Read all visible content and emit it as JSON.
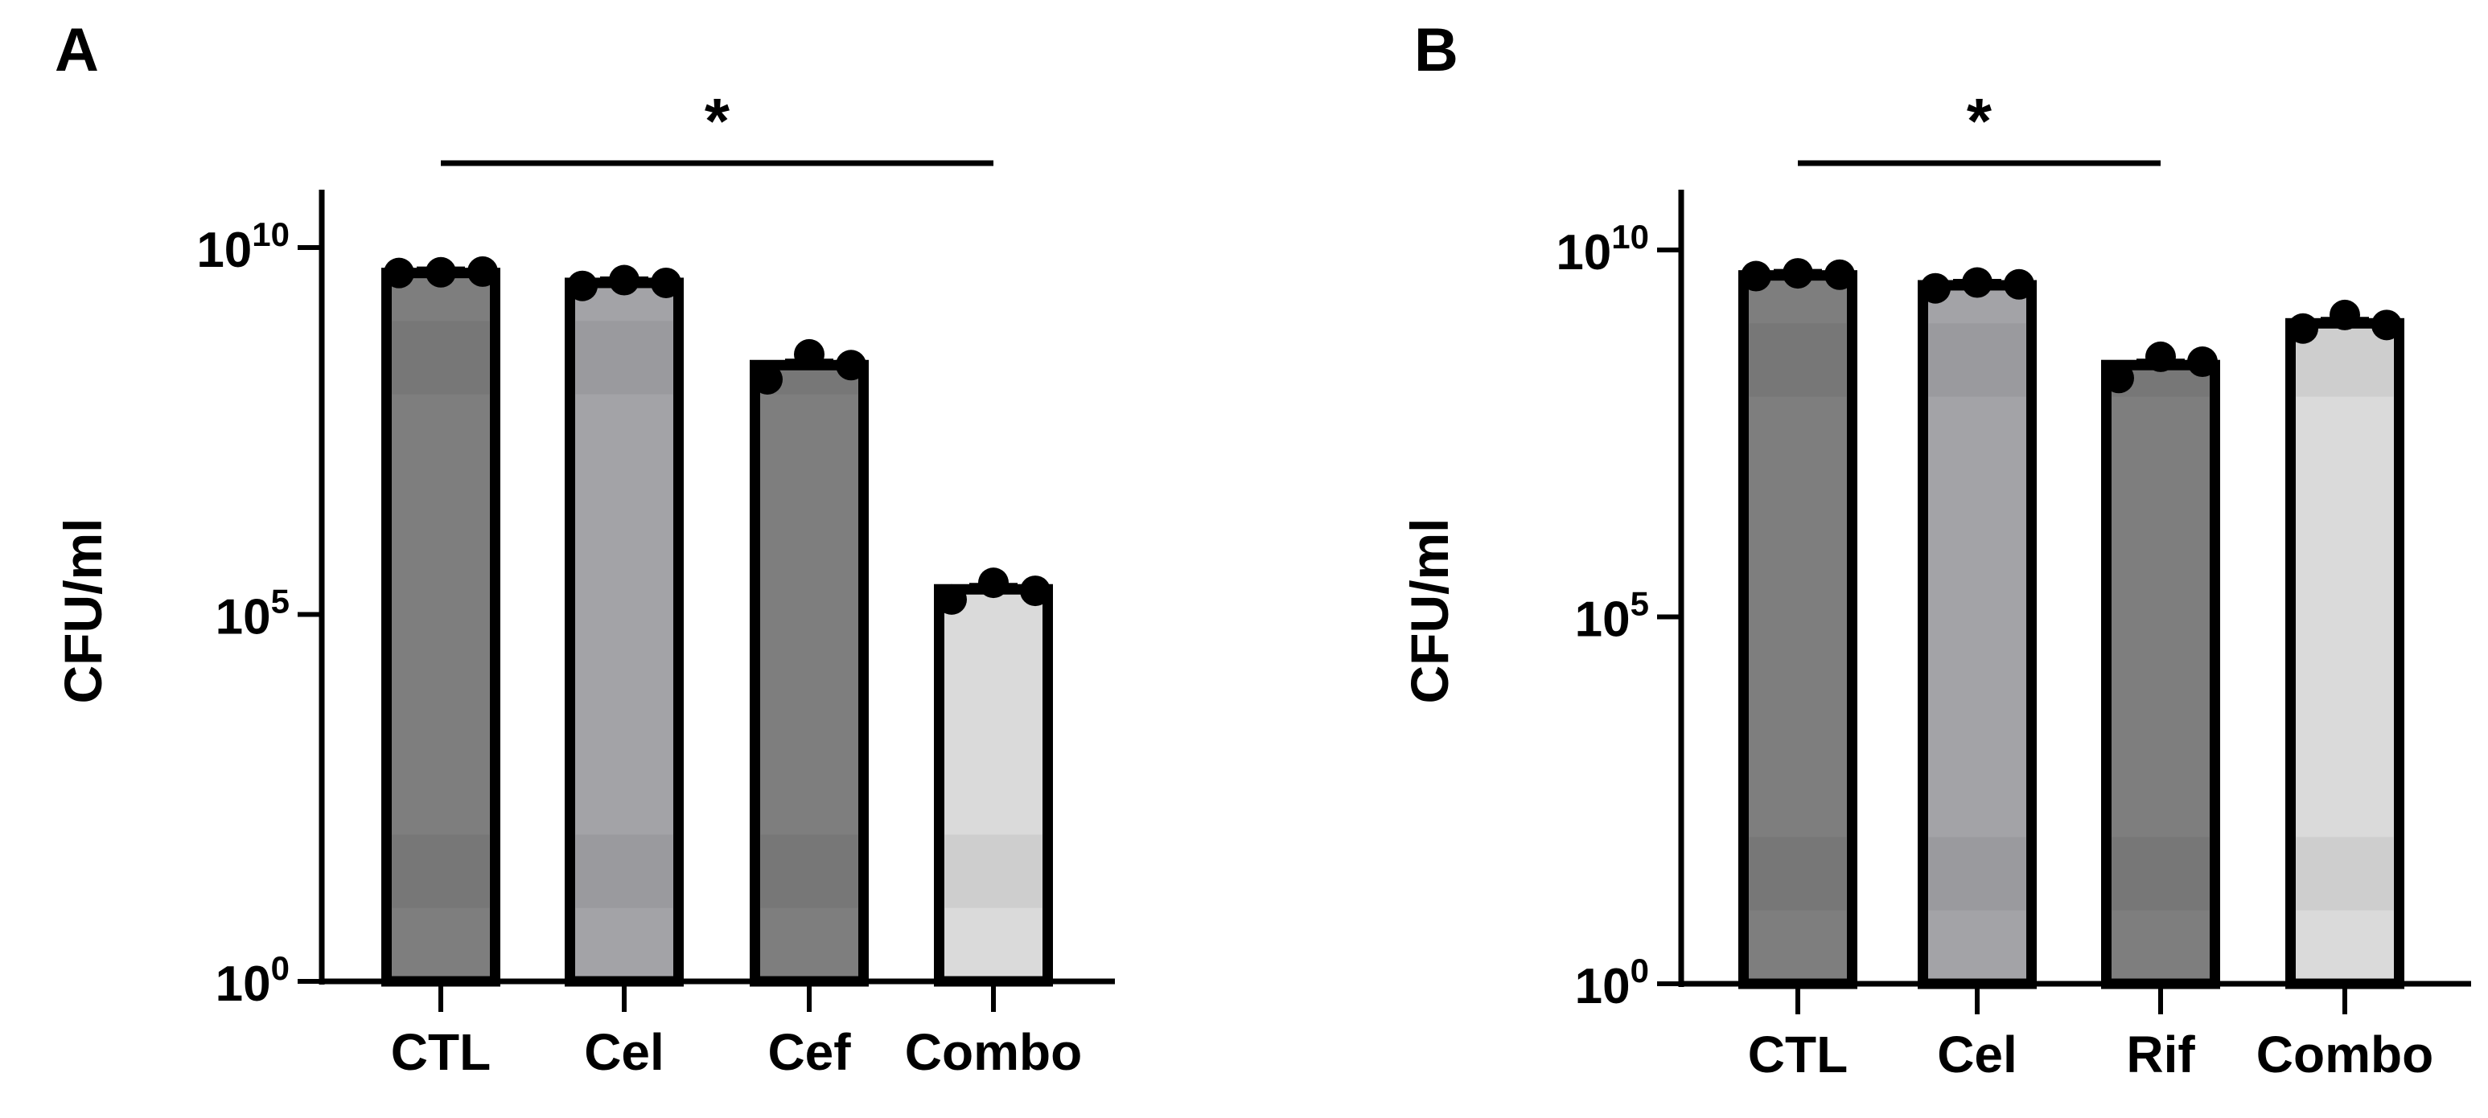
{
  "chart_data": [
    {
      "panel": "A",
      "type": "bar",
      "yscale": "log",
      "ylabel": "CFU/ml",
      "ylim": [
        1,
        100000000000
      ],
      "yticks": [
        {
          "value": 1,
          "base": "10",
          "exp": "0"
        },
        {
          "value": 100000,
          "base": "10",
          "exp": "5"
        },
        {
          "value": 10000000000,
          "base": "10",
          "exp": "10"
        }
      ],
      "categories": [
        "CTL",
        "Cel",
        "Cef",
        "Combo"
      ],
      "values": [
        4500000000,
        3300000000,
        250000000,
        220000
      ],
      "points": [
        [
          4500000000,
          4600000000,
          4700000000
        ],
        [
          3000000000,
          3600000000,
          3300000000
        ],
        [
          160000000,
          350000000,
          250000000
        ],
        [
          160000,
          270000,
          210000
        ]
      ],
      "colors": [
        "#7e7e7e",
        "#a3a3a7",
        "#7e7e7e",
        "#dadada"
      ],
      "significance": {
        "from": 0,
        "to": 3,
        "label": "*"
      }
    },
    {
      "panel": "B",
      "type": "bar",
      "yscale": "log",
      "ylabel": "CFU/ml",
      "ylim": [
        1,
        100000000000
      ],
      "yticks": [
        {
          "value": 1,
          "base": "10",
          "exp": "0"
        },
        {
          "value": 100000,
          "base": "10",
          "exp": "5"
        },
        {
          "value": 10000000000,
          "base": "10",
          "exp": "10"
        }
      ],
      "categories": [
        "CTL",
        "Cel",
        "Rif",
        "Combo"
      ],
      "values": [
        4500000000,
        3300000000,
        270000000,
        1000000000
      ],
      "points": [
        [
          4400000000,
          4800000000,
          4600000000
        ],
        [
          3000000000,
          3600000000,
          3400000000
        ],
        [
          180000000,
          350000000,
          300000000
        ],
        [
          850000000,
          1300000000,
          950000000
        ]
      ],
      "colors": [
        "#7e7e7e",
        "#a3a3a7",
        "#7e7e7e",
        "#dadada"
      ],
      "significance": {
        "from": 0,
        "to": 2,
        "label": "*"
      }
    }
  ]
}
